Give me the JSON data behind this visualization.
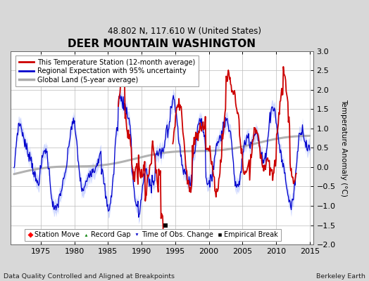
{
  "title": "DEER MOUNTAIN WASHINGTON",
  "subtitle": "48.802 N, 117.610 W (United States)",
  "ylabel": "Temperature Anomaly (°C)",
  "footer_left": "Data Quality Controlled and Aligned at Breakpoints",
  "footer_right": "Berkeley Earth",
  "xlim": [
    1970.5,
    2015.5
  ],
  "ylim": [
    -2.0,
    3.0
  ],
  "yticks": [
    -2,
    -1.5,
    -1,
    -0.5,
    0,
    0.5,
    1,
    1.5,
    2,
    2.5,
    3
  ],
  "xticks": [
    1975,
    1980,
    1985,
    1990,
    1995,
    2000,
    2005,
    2010,
    2015
  ],
  "bg_color": "#d8d8d8",
  "plot_bg_color": "#ffffff",
  "grid_color": "#bbbbbb",
  "station_color": "#cc0000",
  "regional_color": "#0000cc",
  "regional_fill_color": "#aabbff",
  "global_color": "#aaaaaa",
  "empirical_break_year": 1993.5,
  "empirical_break_value": -1.5,
  "red_seg1_start": 1986.5,
  "red_seg1_end": 1993.3,
  "red_seg2_start": 1994.6,
  "red_seg2_end": 2013.0
}
